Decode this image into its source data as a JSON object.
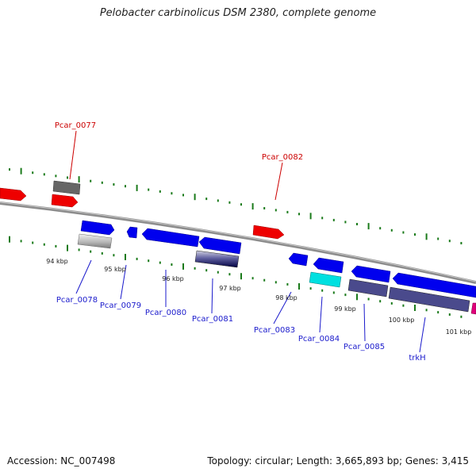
{
  "title": "Pelobacter carbinolicus DSM 2380, complete genome",
  "footer": {
    "accession": "Accession: NC_007498",
    "summary": "Topology: circular; Length: 3,665,893 bp; Genes: 3,415"
  },
  "colors": {
    "backbone": "#8c8c8c",
    "tick": "#1a7a1a",
    "label_top": "#cc0000",
    "label_bottom": "#1a1acc",
    "red_gene": "#ee0000",
    "blue_gene": "#0000ee",
    "gray_gene": "#8a8a8a",
    "cyan_gene": "#00e0e0",
    "slate_gene": "#4a4a8c",
    "navy_gene": "#101060",
    "magenta_gene": "#e0007a"
  },
  "kbp_labels": [
    "94 kbp",
    "95 kbp",
    "96 kbp",
    "97 kbp",
    "98 kbp",
    "99 kbp",
    "100 kbp",
    "101 kbp"
  ],
  "top_labels": [
    "Pcar_0077",
    "Pcar_0082"
  ],
  "bottom_labels": [
    "Pcar_0078",
    "Pcar_0079",
    "Pcar_0080",
    "Pcar_0081",
    "Pcar_0083",
    "Pcar_0084",
    "Pcar_0085",
    "trkH"
  ]
}
